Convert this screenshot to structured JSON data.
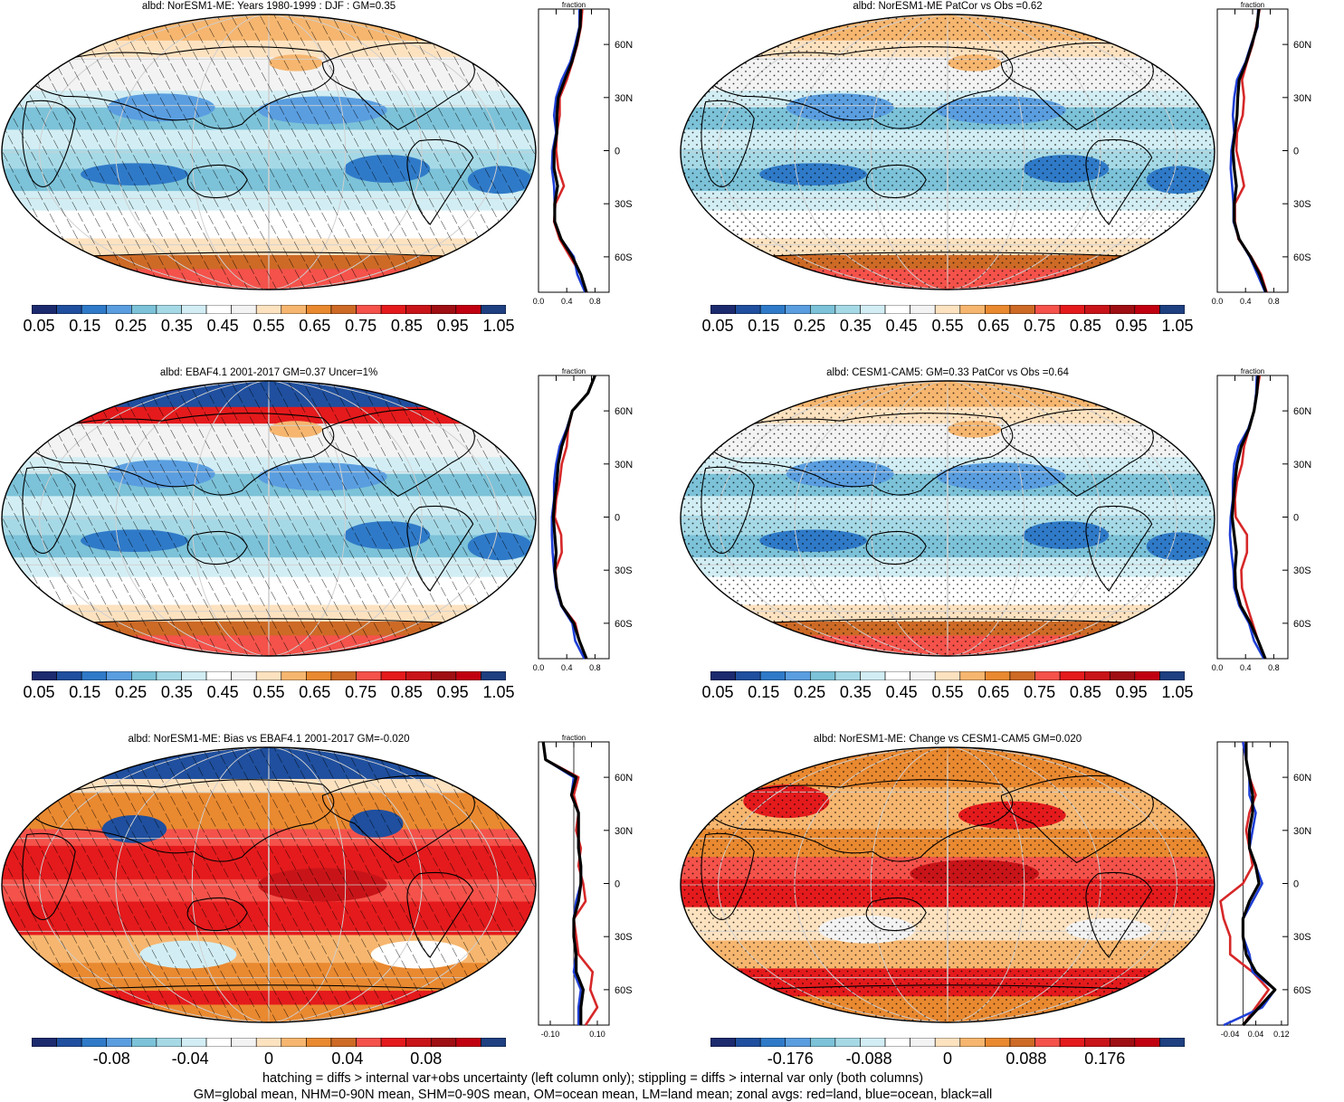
{
  "colors": {
    "palette": [
      "#1c2a6e",
      "#1f4f9e",
      "#2f7ac8",
      "#5a9ee0",
      "#7cc2d8",
      "#a6d9e6",
      "#d2eef4",
      "#ffffff",
      "#f3f3f3",
      "#fde2c0",
      "#f6b66f",
      "#e98930",
      "#cd6a26",
      "#f4524a",
      "#e41a1c",
      "#c81418",
      "#9e0e12",
      "#c00010",
      "#1e3f80"
    ],
    "land_line": "#d62728",
    "ocean_line": "#1f3fd6",
    "all_line": "#000000",
    "map_edge": "#000000",
    "graticule": "#cfcfcf"
  },
  "panels": [
    {
      "id": "p1",
      "title": "albd: NorESM1-ME: Years 1980-1999 : DJF : GM=0.35",
      "pattern": "hatch",
      "variant": "clim",
      "zonal_header": "fraction",
      "zonal_xticks": [
        "0.0",
        "0.4",
        "0.8"
      ],
      "zonal_xrange": [
        0.0,
        1.0
      ],
      "zonal_zero": null,
      "cbar_labels": [
        "0.05",
        "0.15",
        "0.25",
        "0.35",
        "0.45",
        "0.55",
        "0.65",
        "0.75",
        "0.85",
        "0.95",
        "1.05"
      ]
    },
    {
      "id": "p2",
      "title": "albd: NorESM1-ME PatCor vs Obs =0.62",
      "pattern": "stipple",
      "variant": "clim",
      "zonal_header": "fraction",
      "zonal_xticks": [
        "0.0",
        "0.4",
        "0.8"
      ],
      "zonal_xrange": [
        0.0,
        1.0
      ],
      "zonal_zero": null,
      "cbar_labels": [
        "0.05",
        "0.15",
        "0.25",
        "0.35",
        "0.45",
        "0.55",
        "0.65",
        "0.75",
        "0.85",
        "0.95",
        "1.05"
      ]
    },
    {
      "id": "p3",
      "title": "albd: EBAF4.1 2001-2017 GM=0.37 Uncer=1%",
      "pattern": "hatch",
      "variant": "obs",
      "zonal_header": "fraction",
      "zonal_xticks": [
        "0.0",
        "0.4",
        "0.8"
      ],
      "zonal_xrange": [
        0.0,
        1.0
      ],
      "zonal_zero": null,
      "cbar_labels": [
        "0.05",
        "0.15",
        "0.25",
        "0.35",
        "0.45",
        "0.55",
        "0.65",
        "0.75",
        "0.85",
        "0.95",
        "1.05"
      ]
    },
    {
      "id": "p4",
      "title": "albd: CESM1-CAM5: GM=0.33 PatCor vs Obs =0.64",
      "pattern": "stipple",
      "variant": "clim",
      "zonal_header": "fraction",
      "zonal_xticks": [
        "0.0",
        "0.4",
        "0.8"
      ],
      "zonal_xrange": [
        0.0,
        1.0
      ],
      "zonal_zero": null,
      "cbar_labels": [
        "0.05",
        "0.15",
        "0.25",
        "0.35",
        "0.45",
        "0.55",
        "0.65",
        "0.75",
        "0.85",
        "0.95",
        "1.05"
      ]
    },
    {
      "id": "p5",
      "title": "albd: NorESM1-ME: Bias vs EBAF4.1 2001-2017 GM=-0.020",
      "pattern": "hatch",
      "variant": "bias",
      "zonal_header": "fraction",
      "zonal_xticks": [
        "-0.10",
        "0.10"
      ],
      "zonal_xrange": [
        -0.15,
        0.15
      ],
      "zonal_zero": 0.0,
      "cbar_labels": [
        "-0.08",
        "-0.04",
        "0",
        "0.04",
        "0.08"
      ]
    },
    {
      "id": "p6",
      "title": "albd: NorESM1-ME: Change vs CESM1-CAM5 GM=0.020",
      "pattern": "stipple",
      "variant": "change",
      "zonal_header": "",
      "zonal_xticks": [
        "-0.04",
        "0.04",
        "0.12"
      ],
      "zonal_xrange": [
        -0.08,
        0.14
      ],
      "zonal_zero": 0.0,
      "cbar_labels": [
        "-0.176",
        "-0.088",
        "0",
        "0.088",
        "0.176"
      ]
    }
  ],
  "chart_data": {
    "type": "heatmap",
    "description_labels": {
      "lat_ticks": [
        "60N",
        "30N",
        "0",
        "30S",
        "60S"
      ]
    },
    "series_names": [
      "land",
      "ocean",
      "all"
    ],
    "latitudes": [
      80,
      70,
      60,
      50,
      40,
      30,
      20,
      10,
      0,
      -10,
      -20,
      -30,
      -40,
      -50,
      -60,
      -70,
      -80
    ],
    "zonal_means": {
      "p1": {
        "land": [
          0.62,
          0.6,
          0.55,
          0.48,
          0.4,
          0.3,
          0.3,
          0.26,
          0.25,
          0.28,
          0.36,
          0.24,
          0.22,
          0.3,
          0.45,
          0.6,
          0.68
        ],
        "ocean": [
          0.58,
          0.58,
          0.52,
          0.45,
          0.33,
          0.25,
          0.22,
          0.25,
          0.2,
          0.19,
          0.22,
          0.23,
          0.23,
          0.32,
          0.5,
          0.55,
          0.66
        ],
        "all": [
          0.6,
          0.59,
          0.54,
          0.47,
          0.37,
          0.28,
          0.26,
          0.26,
          0.22,
          0.22,
          0.27,
          0.23,
          0.23,
          0.32,
          0.48,
          0.6,
          0.68
        ]
      },
      "p2": {
        "land": [
          0.6,
          0.55,
          0.5,
          0.42,
          0.35,
          0.38,
          0.36,
          0.28,
          0.27,
          0.33,
          0.38,
          0.25,
          0.25,
          0.3,
          0.48,
          0.62,
          0.7
        ],
        "ocean": [
          0.58,
          0.57,
          0.48,
          0.4,
          0.28,
          0.24,
          0.22,
          0.24,
          0.2,
          0.19,
          0.21,
          0.23,
          0.23,
          0.31,
          0.46,
          0.57,
          0.68
        ],
        "all": [
          0.59,
          0.56,
          0.49,
          0.41,
          0.31,
          0.29,
          0.28,
          0.25,
          0.22,
          0.24,
          0.27,
          0.24,
          0.24,
          0.31,
          0.47,
          0.6,
          0.69
        ]
      },
      "p3": {
        "land": [
          0.8,
          0.7,
          0.48,
          0.42,
          0.4,
          0.33,
          0.3,
          0.25,
          0.23,
          0.32,
          0.33,
          0.24,
          0.26,
          0.33,
          0.52,
          0.58,
          0.68
        ],
        "ocean": [
          0.8,
          0.7,
          0.48,
          0.4,
          0.3,
          0.25,
          0.22,
          0.22,
          0.19,
          0.19,
          0.2,
          0.22,
          0.25,
          0.32,
          0.48,
          0.52,
          0.65
        ],
        "all": [
          0.8,
          0.7,
          0.48,
          0.41,
          0.33,
          0.28,
          0.26,
          0.23,
          0.21,
          0.23,
          0.25,
          0.23,
          0.26,
          0.33,
          0.5,
          0.58,
          0.68
        ]
      },
      "p4": {
        "land": [
          0.6,
          0.56,
          0.52,
          0.45,
          0.38,
          0.35,
          0.28,
          0.25,
          0.26,
          0.42,
          0.42,
          0.34,
          0.35,
          0.42,
          0.5,
          0.58,
          0.68
        ],
        "ocean": [
          0.56,
          0.55,
          0.52,
          0.44,
          0.3,
          0.24,
          0.22,
          0.22,
          0.19,
          0.18,
          0.2,
          0.23,
          0.24,
          0.31,
          0.45,
          0.52,
          0.66
        ],
        "all": [
          0.58,
          0.56,
          0.52,
          0.45,
          0.34,
          0.28,
          0.25,
          0.23,
          0.21,
          0.24,
          0.27,
          0.25,
          0.26,
          0.33,
          0.47,
          0.58,
          0.68
        ]
      },
      "p5": {
        "land": [
          -0.13,
          -0.12,
          0.02,
          0.0,
          0.02,
          0.01,
          0.03,
          0.02,
          0.04,
          0.05,
          0.0,
          0.01,
          0.02,
          0.08,
          0.07,
          0.1,
          0.05
        ],
        "ocean": [
          -0.13,
          -0.12,
          0.0,
          -0.01,
          0.02,
          0.02,
          0.02,
          0.03,
          0.03,
          0.01,
          0.0,
          0.0,
          0.01,
          0.0,
          0.03,
          0.02,
          0.02
        ],
        "all": [
          -0.13,
          -0.12,
          0.01,
          -0.01,
          0.02,
          0.02,
          0.02,
          0.03,
          0.03,
          0.02,
          0.0,
          0.0,
          0.01,
          0.01,
          0.04,
          0.03,
          0.03
        ]
      },
      "p6": {
        "land": [
          0.0,
          0.01,
          0.02,
          0.04,
          0.02,
          0.01,
          0.02,
          0.03,
          0.0,
          -0.07,
          -0.06,
          -0.04,
          -0.04,
          0.03,
          0.08,
          0.04,
          0.0
        ],
        "ocean": [
          0.0,
          0.01,
          0.02,
          0.02,
          0.04,
          0.03,
          0.02,
          0.04,
          0.06,
          0.03,
          0.0,
          0.0,
          0.02,
          0.03,
          0.1,
          0.06,
          -0.06
        ],
        "all": [
          0.01,
          0.01,
          0.02,
          0.03,
          0.03,
          0.02,
          0.02,
          0.04,
          0.05,
          0.02,
          0.0,
          0.0,
          0.01,
          0.04,
          0.1,
          0.05,
          0.0
        ]
      }
    }
  },
  "footer": {
    "line1": "hatching = diffs > internal var+obs uncertainty (left column only); stippling = diffs > internal var only (both columns)",
    "line2": "GM=global mean, NHM=0-90N mean, SHM=0-90S mean, OM=ocean mean, LM=land mean; zonal avgs: red=land, blue=ocean, black=all"
  }
}
